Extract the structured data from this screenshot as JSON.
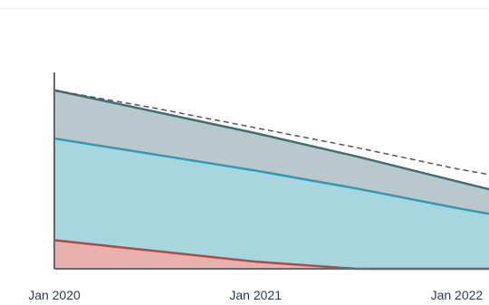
{
  "chart_data": {
    "type": "area",
    "x": [
      "2020-01",
      "2020-07",
      "2021-01",
      "2021-07",
      "2022-01",
      "2022-04"
    ],
    "xticks": [
      {
        "date": "2020-01",
        "label": "Jan 2020"
      },
      {
        "date": "2021-01",
        "label": "Jan 2021"
      },
      {
        "date": "2022-01",
        "label": "Jan 2022"
      }
    ],
    "xlim": [
      "2020-01",
      "2022-04"
    ],
    "ylim": [
      0,
      110
    ],
    "stacked": false,
    "grid": false,
    "series": [
      {
        "kind": "area",
        "values": [
          100,
          88,
          76,
          63,
          49,
          42
        ],
        "fill": "#b9c8cc",
        "line": "#3e6f75"
      },
      {
        "kind": "area",
        "values": [
          73,
          64,
          55,
          45,
          34,
          29
        ],
        "fill": "#a7d6df",
        "line": "#2f9bb3"
      },
      {
        "kind": "area",
        "values": [
          16,
          10,
          4,
          0,
          0,
          0
        ],
        "fill": "#e8b1ad",
        "line": "#b24a43"
      },
      {
        "kind": "dashed-line",
        "values": [
          100,
          90,
          79,
          68,
          56,
          51
        ],
        "line": "#555555"
      }
    ],
    "axis_color": "#5f6a72"
  }
}
